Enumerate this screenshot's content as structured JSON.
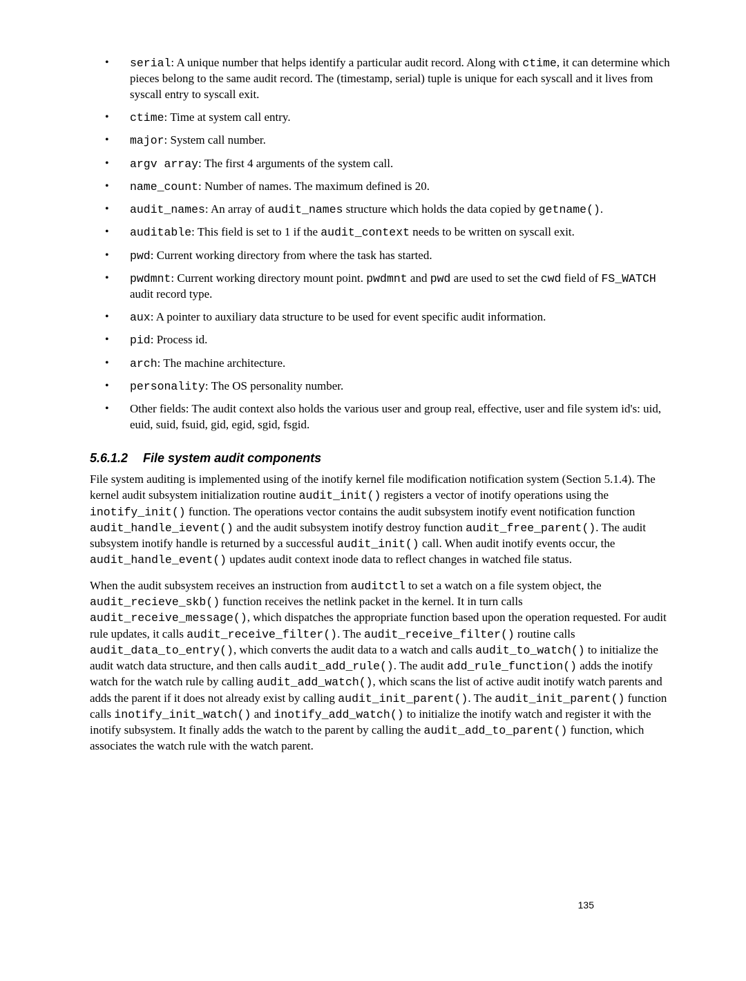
{
  "fields": [
    {
      "term": "serial",
      "hasTerm": true,
      "desc_html": "A unique number that helps identify a particular audit record. Along with <code>ctime</code>, it can determine which pieces belong to the same audit record.  The (timestamp, serial) tuple is unique for each syscall and it lives from syscall entry to syscall exit."
    },
    {
      "term": "ctime",
      "hasTerm": true,
      "desc_html": "Time at system call entry."
    },
    {
      "term": "major",
      "hasTerm": true,
      "desc_html": "System call number."
    },
    {
      "term": "argv array",
      "hasTerm": true,
      "desc_html": "The first 4 arguments of the system call."
    },
    {
      "term": "name_count",
      "hasTerm": true,
      "desc_html": "Number of names. The maximum defined is 20."
    },
    {
      "term": "audit_names",
      "hasTerm": true,
      "desc_html": "An array of <code>audit_names</code> structure which holds the data copied by <code>getname()</code>."
    },
    {
      "term": "auditable",
      "hasTerm": true,
      "desc_html": "This field is set to 1 if the <code>audit_context</code> needs to be written on syscall exit."
    },
    {
      "term": "pwd",
      "hasTerm": true,
      "desc_html": "Current working directory from where the task has started."
    },
    {
      "term": "pwdmnt",
      "hasTerm": true,
      "desc_html": "Current working directory mount point.  <code>pwdmnt</code> and <code>pwd</code> are used to set the <code>cwd</code> field of <code>FS_WATCH</code> audit record type."
    },
    {
      "term": "aux",
      "hasTerm": true,
      "desc_html": "A pointer to auxiliary data structure to be used for event specific audit information."
    },
    {
      "term": "pid",
      "hasTerm": true,
      "desc_html": "Process id."
    },
    {
      "term": "arch",
      "hasTerm": true,
      "desc_html": "The machine architecture."
    },
    {
      "term": "personality",
      "hasTerm": true,
      "desc_html": "The OS personality number."
    },
    {
      "term": "",
      "hasTerm": false,
      "desc_html": "Other fields:  The audit context also holds the various user and group real, effective, user and file system id's: uid, euid, suid, fsuid, gid, egid, sgid, fsgid."
    }
  ],
  "section": {
    "number": "5.6.1.2",
    "title": "File system audit components"
  },
  "para1_html": "File system auditing is implemented using of the inotify kernel file modification notification system (Section 5.1.4).  The kernel audit subsystem initialization routine <code>audit_init()</code> registers a vector of inotify operations using the <code>inotify_init()</code> function.  The operations vector contains the audit subsystem inotify event notification function <code>audit_handle_ievent()</code> and the audit subsystem inotify destroy function <code>audit_free_parent()</code>.  The audit subsystem inotify handle is returned by a successful <code>audit_init()</code> call.  When audit inotify events occur, the <code>audit_handle_event()</code> updates audit context inode data to reflect changes in watched file status.",
  "para2_html": "When the audit subsystem receives an instruction from <code>auditctl</code> to set a watch on a file system object, the <code>audit_recieve_skb()</code> function receives the netlink packet in the kernel.  It in turn calls <code>audit_receive_message()</code>, which dispatches the appropriate function based upon the operation requested.  For audit rule updates, it calls <code>audit_receive_filter()</code>.  The <code>audit_receive_filter()</code> routine calls <code>audit_data_to_entry()</code>, which converts the audit data to a watch and calls <code>audit_to_watch()</code> to initialize the audit watch data structure, and then calls <code>audit_add_rule()</code>.  The audit <code>add_rule_function()</code> adds the inotify watch for the watch rule by calling <code>audit_add_watch()</code>, which scans the list of active audit inotify watch parents and adds the parent if it does not already exist by calling <code>audit_init_parent()</code>. The <code>audit_init_parent()</code>  function calls <code>inotify_init_watch()</code> and  <code>inotify_add_watch()</code> to initialize the inotify watch and register it with the inotify subsystem.  It finally adds the watch to the parent by calling  the <code>audit_add_to_parent()</code> function, which associates the watch rule with the watch parent.",
  "pageNumber": "135"
}
